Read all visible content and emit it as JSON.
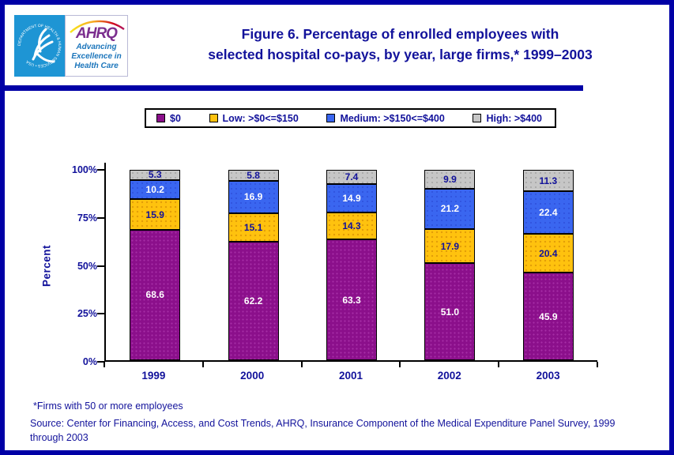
{
  "colors": {
    "navy": "#12129B",
    "border": "#0000A6",
    "divider": "#0000A6",
    "hhs_blue": "#1E95D4",
    "ahrq_purple": "#7B2E8E",
    "tagline_blue": "#1B75BB"
  },
  "header": {
    "title": "Figure 6. Percentage of enrolled employees with\nselected hospital co-pays, by year, large firms,* 1999–2003",
    "logo": {
      "ahrq_acronym": "AHRQ",
      "ahrq_tagline": "Advancing\nExcellence in\nHealth Care",
      "hhs_seal_text": "DEPARTMENT OF HEALTH & HUMAN SERVICES • USA"
    }
  },
  "chart_data": {
    "type": "stacked-bar",
    "title": "Figure 6. Percentage of enrolled employees with selected hospital co-pays, by year, large firms, 1999–2003",
    "categories": [
      "1999",
      "2000",
      "2001",
      "2002",
      "2003"
    ],
    "series": [
      {
        "name": "$0",
        "color": "#8B0F8B",
        "label_color": "#FFFFFF",
        "values": [
          68.6,
          62.2,
          63.3,
          51.0,
          45.9
        ]
      },
      {
        "name": "Low: >$0<=$150",
        "color": "#FFC20E",
        "label_color": "#12129B",
        "values": [
          15.9,
          15.1,
          14.3,
          17.9,
          20.4
        ]
      },
      {
        "name": "Medium: >$150<=$400",
        "color": "#3A66F0",
        "label_color": "#FFFFFF",
        "values": [
          10.2,
          16.9,
          14.9,
          21.2,
          22.4
        ]
      },
      {
        "name": "High: >$400",
        "color": "#C6C6C6",
        "label_color": "#12129B",
        "values": [
          5.3,
          5.8,
          7.4,
          9.9,
          11.3
        ]
      }
    ],
    "ylabel": "Percent",
    "xlabel": "",
    "yticks": [
      "0%",
      "25%",
      "50%",
      "75%",
      "100%"
    ],
    "ylim": [
      0,
      100
    ],
    "legend_position": "top",
    "grid": false
  },
  "footnotes": {
    "asterisk": "*Firms with 50 or more employees",
    "source": "Source: Center for Financing, Access, and Cost Trends, AHRQ, Insurance Component of the Medical Expenditure Panel Survey, 1999 through 2003"
  }
}
